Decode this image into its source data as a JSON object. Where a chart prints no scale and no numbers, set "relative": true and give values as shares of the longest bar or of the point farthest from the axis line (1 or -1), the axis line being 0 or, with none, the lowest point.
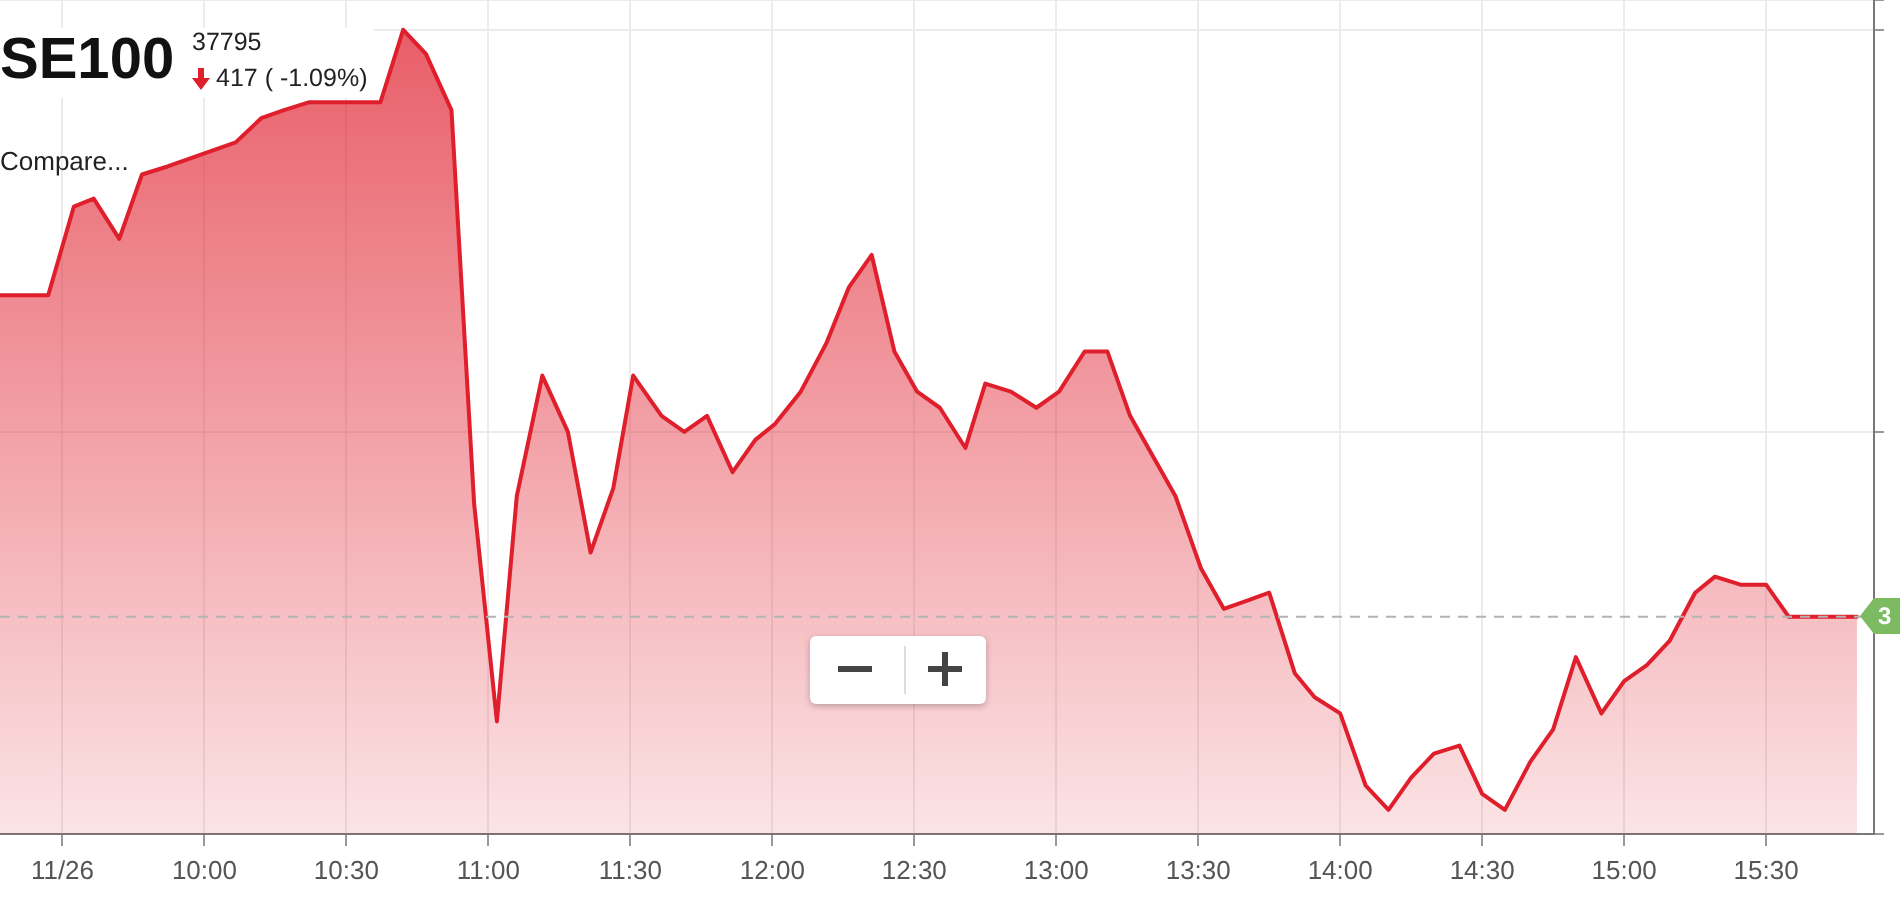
{
  "chart_data": {
    "type": "area",
    "title": "SE100",
    "annotations": [
      "37795",
      "417 ( -1.09%)",
      "Compare...",
      "3"
    ],
    "relative": true,
    "x": [
      9.28,
      9.45,
      9.54,
      9.61,
      9.7,
      9.78,
      9.87,
      9.95,
      10.03,
      10.11,
      10.2,
      10.28,
      10.37,
      10.45,
      10.54,
      10.62,
      10.7,
      10.78,
      10.87,
      10.95,
      11.03,
      11.1,
      11.19,
      11.28,
      11.36,
      11.44,
      11.51,
      11.61,
      11.69,
      11.77,
      11.86,
      11.94,
      12.01,
      12.1,
      12.19,
      12.27,
      12.35,
      12.43,
      12.51,
      12.59,
      12.68,
      12.75,
      12.84,
      12.93,
      13.01,
      13.1,
      13.18,
      13.26,
      13.34,
      13.42,
      13.51,
      13.59,
      13.67,
      13.75,
      13.84,
      13.91,
      14.0,
      14.09,
      14.17,
      14.25,
      14.33,
      14.42,
      14.5,
      14.58,
      14.67,
      14.75,
      14.83,
      14.92,
      15.0,
      15.08,
      15.16,
      15.25,
      15.32,
      15.41,
      15.5,
      15.58,
      15.82
    ],
    "series": [
      {
        "color": "#e01f2d",
        "values": [
          0.67,
          0.67,
          0.78,
          0.79,
          0.74,
          0.82,
          0.83,
          0.84,
          0.85,
          0.86,
          0.89,
          0.9,
          0.91,
          0.91,
          0.91,
          0.91,
          1.0,
          0.97,
          0.9,
          0.41,
          0.14,
          0.42,
          0.57,
          0.5,
          0.35,
          0.43,
          0.57,
          0.52,
          0.5,
          0.52,
          0.45,
          0.49,
          0.51,
          0.55,
          0.61,
          0.68,
          0.72,
          0.6,
          0.55,
          0.53,
          0.48,
          0.56,
          0.55,
          0.53,
          0.55,
          0.6,
          0.6,
          0.52,
          0.47,
          0.42,
          0.33,
          0.28,
          0.29,
          0.3,
          0.2,
          0.17,
          0.15,
          0.06,
          0.03,
          0.07,
          0.1,
          0.11,
          0.05,
          0.03,
          0.09,
          0.13,
          0.22,
          0.15,
          0.19,
          0.21,
          0.24,
          0.3,
          0.32,
          0.31,
          0.31,
          0.27,
          0.27
        ]
      }
    ],
    "xlim": [
      9.28,
      15.88
    ],
    "xticks": [
      {
        "value": 9.5,
        "label": "11/26"
      },
      {
        "value": 10,
        "label": "10:00"
      },
      {
        "value": 10.5,
        "label": "10:30"
      },
      {
        "value": 11,
        "label": "11:00"
      },
      {
        "value": 11.5,
        "label": "11:30"
      },
      {
        "value": 12,
        "label": "12:00"
      },
      {
        "value": 12.5,
        "label": "12:30"
      },
      {
        "value": 13,
        "label": "13:00"
      },
      {
        "value": 13.5,
        "label": "13:30"
      },
      {
        "value": 14,
        "label": "14:00"
      },
      {
        "value": 14.5,
        "label": "14:30"
      },
      {
        "value": 15,
        "label": "15:00"
      },
      {
        "value": 15.5,
        "label": "15:30"
      }
    ],
    "ref_lines": [
      {
        "axis": "y",
        "value": 0.27,
        "color": "#b3b3b3",
        "line_style": "dashed"
      }
    ],
    "grid": true,
    "legend": false,
    "marker": "none",
    "line_style": "solid",
    "tick_labels": "x"
  }
}
